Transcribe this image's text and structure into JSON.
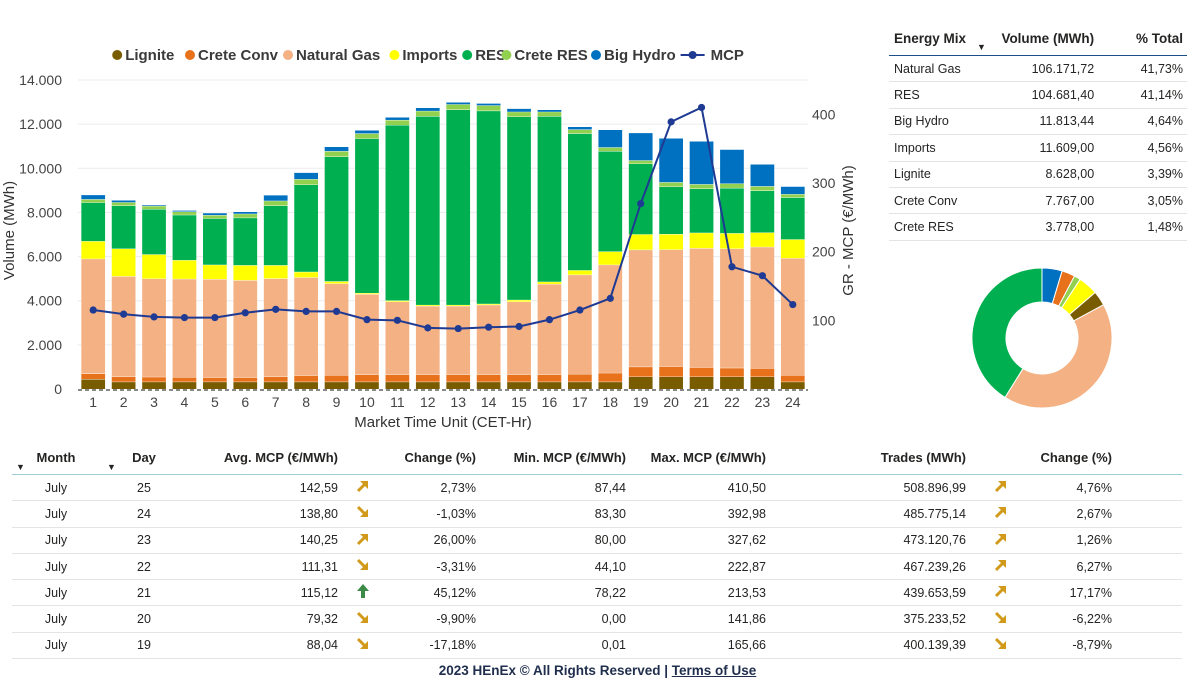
{
  "chart_data": {
    "type": "bar",
    "stacked": true,
    "xlabel": "Market Time Unit (CET-Hr)",
    "ylabel": "Volume (MWh)",
    "y2label": "GR - MCP (€/MWh)",
    "ylim": [
      0,
      14000
    ],
    "y2lim": [
      0,
      450
    ],
    "yticks": [
      "0",
      "2.000",
      "4.000",
      "6.000",
      "8.000",
      "10.000",
      "12.000",
      "14.000"
    ],
    "y2ticks": [
      "100",
      "200",
      "300",
      "400"
    ],
    "legend_position": "top",
    "categories": [
      "1",
      "2",
      "3",
      "4",
      "5",
      "6",
      "7",
      "8",
      "9",
      "10",
      "11",
      "12",
      "13",
      "14",
      "15",
      "16",
      "17",
      "18",
      "19",
      "20",
      "21",
      "22",
      "23",
      "24"
    ],
    "series": [
      {
        "name": "Lignite",
        "color": "#7a5c00",
        "values": [
          450,
          330,
          330,
          330,
          330,
          330,
          330,
          330,
          330,
          330,
          330,
          330,
          330,
          330,
          330,
          330,
          330,
          330,
          560,
          560,
          560,
          560,
          560,
          330
        ]
      },
      {
        "name": "Crete Conv",
        "color": "#e8711b",
        "values": [
          250,
          230,
          220,
          210,
          200,
          200,
          230,
          280,
          300,
          320,
          330,
          330,
          330,
          330,
          330,
          330,
          350,
          400,
          450,
          460,
          420,
          400,
          380,
          300
        ]
      },
      {
        "name": "Natural Gas",
        "color": "#f4b183",
        "values": [
          5200,
          4550,
          4450,
          4450,
          4450,
          4400,
          4450,
          4450,
          4150,
          3650,
          3300,
          3100,
          3100,
          3150,
          3300,
          4100,
          4500,
          4900,
          5300,
          5300,
          5400,
          5400,
          5500,
          5300
        ]
      },
      {
        "name": "Imports",
        "color": "#ffff00",
        "values": [
          800,
          1250,
          1100,
          850,
          650,
          680,
          600,
          250,
          100,
          50,
          50,
          50,
          50,
          50,
          80,
          100,
          200,
          600,
          700,
          700,
          700,
          700,
          650,
          850
        ]
      },
      {
        "name": "RES",
        "color": "#00b050",
        "values": [
          1750,
          1950,
          2050,
          2050,
          2100,
          2150,
          2700,
          3950,
          5650,
          7000,
          7950,
          8550,
          8850,
          8750,
          8300,
          7500,
          6200,
          4550,
          3200,
          2150,
          2000,
          2050,
          1900,
          1900
        ]
      },
      {
        "name": "Crete RES",
        "color": "#92d050",
        "values": [
          150,
          150,
          150,
          150,
          150,
          180,
          220,
          250,
          250,
          230,
          230,
          240,
          240,
          240,
          220,
          200,
          180,
          170,
          150,
          200,
          200,
          200,
          200,
          150
        ]
      },
      {
        "name": "Big Hydro",
        "color": "#0070c0",
        "values": [
          200,
          100,
          50,
          60,
          100,
          100,
          260,
          300,
          200,
          150,
          130,
          150,
          100,
          100,
          150,
          100,
          130,
          800,
          1250,
          2000,
          1950,
          1550,
          1000,
          350
        ]
      }
    ],
    "line": {
      "name": "MCP",
      "color": "#1f3a93",
      "axis": "y2",
      "values": [
        115,
        109,
        105,
        104,
        104,
        111,
        116,
        113,
        113,
        101,
        100,
        89,
        88,
        90,
        91,
        101,
        115,
        132,
        270,
        389,
        410,
        178,
        165,
        123
      ]
    }
  },
  "energy_mix": {
    "headers": [
      "Energy Mix",
      "Volume (MWh)",
      "% Total"
    ],
    "rows": [
      {
        "name": "Natural Gas",
        "volume": "106.171,72",
        "pct": "41,73%"
      },
      {
        "name": "RES",
        "volume": "104.681,40",
        "pct": "41,14%"
      },
      {
        "name": "Big Hydro",
        "volume": "11.813,44",
        "pct": "4,64%"
      },
      {
        "name": "Imports",
        "volume": "11.609,00",
        "pct": "4,56%"
      },
      {
        "name": "Lignite",
        "volume": "8.628,00",
        "pct": "3,39%"
      },
      {
        "name": "Crete Conv",
        "volume": "7.767,00",
        "pct": "3,05%"
      },
      {
        "name": "Crete RES",
        "volume": "3.778,00",
        "pct": "1,48%"
      }
    ]
  },
  "donut": [
    {
      "name": "Big Hydro",
      "value": 4.64,
      "color": "#0070c0"
    },
    {
      "name": "Crete Conv",
      "value": 3.05,
      "color": "#e8711b"
    },
    {
      "name": "Crete RES",
      "value": 1.48,
      "color": "#92d050"
    },
    {
      "name": "Imports",
      "value": 4.56,
      "color": "#ffff00"
    },
    {
      "name": "Lignite",
      "value": 3.39,
      "color": "#7a5c00"
    },
    {
      "name": "Natural Gas",
      "value": 41.73,
      "color": "#f4b183"
    },
    {
      "name": "RES",
      "value": 41.14,
      "color": "#00b050"
    }
  ],
  "daily": {
    "headers": [
      "Month",
      "Day",
      "Avg. MCP (€/MWh)",
      "Change (%)",
      "Min. MCP (€/MWh)",
      "Max. MCP (€/MWh)",
      "Trades (MWh)",
      "Change (%)"
    ],
    "rows": [
      {
        "month": "July",
        "day": "25",
        "avg": "142,59",
        "arrow": "up-right",
        "change": "2,73%",
        "min": "87,44",
        "max": "410,50",
        "trades": "508.896,99",
        "tarrow": "up-right",
        "tchange": "4,76%"
      },
      {
        "month": "July",
        "day": "24",
        "avg": "138,80",
        "arrow": "down-right",
        "change": "-1,03%",
        "min": "83,30",
        "max": "392,98",
        "trades": "485.775,14",
        "tarrow": "up-right",
        "tchange": "2,67%"
      },
      {
        "month": "July",
        "day": "23",
        "avg": "140,25",
        "arrow": "up-right",
        "change": "26,00%",
        "min": "80,00",
        "max": "327,62",
        "trades": "473.120,76",
        "tarrow": "up-right",
        "tchange": "1,26%"
      },
      {
        "month": "July",
        "day": "22",
        "avg": "111,31",
        "arrow": "down-right",
        "change": "-3,31%",
        "min": "44,10",
        "max": "222,87",
        "trades": "467.239,26",
        "tarrow": "up-right",
        "tchange": "6,27%"
      },
      {
        "month": "July",
        "day": "21",
        "avg": "115,12",
        "arrow": "up",
        "change": "45,12%",
        "min": "78,22",
        "max": "213,53",
        "trades": "439.653,59",
        "tarrow": "up-right",
        "tchange": "17,17%"
      },
      {
        "month": "July",
        "day": "20",
        "avg": "79,32",
        "arrow": "down-right",
        "change": "-9,90%",
        "min": "0,00",
        "max": "141,86",
        "trades": "375.233,52",
        "tarrow": "down-right",
        "tchange": "-6,22%"
      },
      {
        "month": "July",
        "day": "19",
        "avg": "88,04",
        "arrow": "down-right",
        "change": "-17,18%",
        "min": "0,01",
        "max": "165,66",
        "trades": "400.139,39",
        "tarrow": "down-right",
        "tchange": "-8,79%"
      }
    ]
  },
  "footer": {
    "copyright": "2023 HEnEx © All Rights Reserved | ",
    "terms": "Terms of Use"
  }
}
